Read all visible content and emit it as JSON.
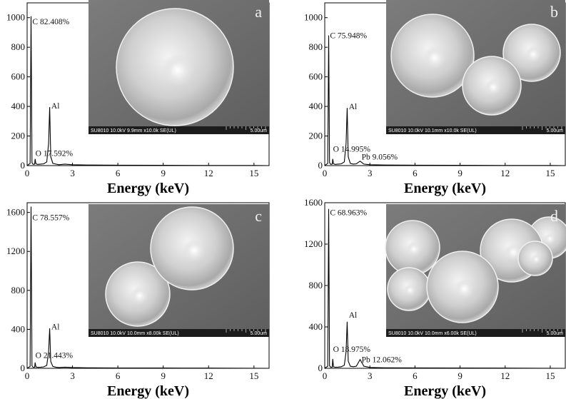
{
  "chart_data": [
    {
      "type": "line",
      "panel_label": "a",
      "xlabel": "Energy (keV)",
      "ylabel": "",
      "xlim": [
        0,
        16
      ],
      "ylim": [
        0,
        1100
      ],
      "xticks": [
        0,
        3,
        6,
        9,
        12,
        15
      ],
      "yticks": [
        0,
        200,
        400,
        600,
        800,
        1000
      ],
      "series": [
        {
          "x": [
            0,
            0.2,
            0.26,
            0.32,
            0.4,
            0.5,
            0.53,
            0.58,
            0.7,
            0.9,
            1.1,
            1.3,
            1.42,
            1.49,
            1.56,
            1.7,
            1.9,
            2.1,
            2.5,
            3,
            4,
            6,
            9,
            12,
            15,
            16
          ],
          "y": [
            0,
            15,
            1010,
            20,
            8,
            10,
            45,
            12,
            8,
            10,
            12,
            25,
            150,
            395,
            60,
            15,
            10,
            6,
            10,
            6,
            4,
            3,
            2,
            1,
            1,
            0
          ]
        }
      ],
      "peak_labels": [
        {
          "text": "C   82.408%",
          "x": 0.35,
          "y": 955
        },
        {
          "text": "Al",
          "x": 1.6,
          "y": 385
        },
        {
          "text": "O   17.592%",
          "x": 0.55,
          "y": 65
        }
      ],
      "sem_caption_left": "SU8010 10.0kV 9.9mm x10.0k SE(UL)",
      "sem_caption_right": "5.00um"
    },
    {
      "type": "line",
      "panel_label": "b",
      "xlabel": "Energy (keV)",
      "ylabel": "",
      "xlim": [
        0,
        16
      ],
      "ylim": [
        0,
        1100
      ],
      "xticks": [
        0,
        3,
        6,
        9,
        12,
        15
      ],
      "yticks": [
        0,
        200,
        400,
        600,
        800,
        1000
      ],
      "series": [
        {
          "x": [
            0,
            0.2,
            0.26,
            0.32,
            0.4,
            0.5,
            0.53,
            0.58,
            0.7,
            0.9,
            1.1,
            1.3,
            1.42,
            1.49,
            1.56,
            1.7,
            1.9,
            2.1,
            2.35,
            2.6,
            3,
            4,
            6,
            9,
            12,
            15,
            16
          ],
          "y": [
            0,
            15,
            880,
            20,
            8,
            10,
            45,
            12,
            8,
            10,
            12,
            25,
            150,
            390,
            60,
            15,
            10,
            12,
            30,
            10,
            6,
            4,
            3,
            2,
            1,
            1,
            0
          ]
        }
      ],
      "peak_labels": [
        {
          "text": "C   75.948%",
          "x": 0.35,
          "y": 860
        },
        {
          "text": "Al",
          "x": 1.6,
          "y": 380
        },
        {
          "text": "O   14.995%",
          "x": 0.55,
          "y": 95
        },
        {
          "text": "Pb   9.056%",
          "x": 2.45,
          "y": 40
        }
      ],
      "sem_caption_left": "SU8010 10.0kV 10.1mm x10.0k SE(UL)",
      "sem_caption_right": "5.00um"
    },
    {
      "type": "line",
      "panel_label": "c",
      "xlabel": "Energy (keV)",
      "ylabel": "",
      "xlim": [
        0,
        16
      ],
      "ylim": [
        0,
        1700
      ],
      "xticks": [
        0,
        3,
        6,
        9,
        12,
        15
      ],
      "yticks": [
        0,
        400,
        800,
        1200,
        1600
      ],
      "series": [
        {
          "x": [
            0,
            0.2,
            0.26,
            0.32,
            0.4,
            0.5,
            0.53,
            0.58,
            0.7,
            0.9,
            1.1,
            1.3,
            1.42,
            1.49,
            1.56,
            1.7,
            1.9,
            2.1,
            2.5,
            3,
            4,
            6,
            9,
            12,
            15,
            16
          ],
          "y": [
            0,
            20,
            1660,
            25,
            10,
            12,
            60,
            15,
            10,
            12,
            15,
            30,
            170,
            410,
            70,
            20,
            12,
            8,
            12,
            8,
            5,
            4,
            3,
            2,
            1,
            0
          ]
        }
      ],
      "peak_labels": [
        {
          "text": "C   78.557%",
          "x": 0.35,
          "y": 1520
        },
        {
          "text": "Al",
          "x": 1.6,
          "y": 400
        },
        {
          "text": "O   21.443%",
          "x": 0.55,
          "y": 105
        }
      ],
      "sem_caption_left": "SU8010 10.0kV 10.0mm x8.00k SE(UL)",
      "sem_caption_right": "5.00um"
    },
    {
      "type": "line",
      "panel_label": "d",
      "xlabel": "Energy (keV)",
      "ylabel": "",
      "xlim": [
        0,
        16
      ],
      "ylim": [
        0,
        1600
      ],
      "xticks": [
        0,
        3,
        6,
        9,
        12,
        15
      ],
      "yticks": [
        0,
        400,
        800,
        1200,
        1600
      ],
      "series": [
        {
          "x": [
            0,
            0.2,
            0.26,
            0.32,
            0.4,
            0.5,
            0.53,
            0.58,
            0.7,
            0.9,
            1.1,
            1.3,
            1.42,
            1.49,
            1.56,
            1.7,
            1.9,
            2.1,
            2.35,
            2.6,
            3,
            4,
            6,
            9,
            12,
            15,
            16
          ],
          "y": [
            0,
            20,
            1540,
            25,
            10,
            12,
            90,
            15,
            10,
            12,
            15,
            30,
            160,
            450,
            70,
            20,
            15,
            20,
            85,
            20,
            8,
            5,
            4,
            3,
            2,
            1,
            0
          ]
        }
      ],
      "peak_labels": [
        {
          "text": "C   68.963%",
          "x": 0.35,
          "y": 1480
        },
        {
          "text": "Al",
          "x": 1.6,
          "y": 490
        },
        {
          "text": "O   18.975%",
          "x": 0.55,
          "y": 160
        },
        {
          "text": "Pb   12.062%",
          "x": 2.45,
          "y": 60
        }
      ],
      "sem_caption_left": "SU8010 10.0kV 10.0mm x6.00k SE(UL)",
      "sem_caption_right": "5.00um"
    }
  ]
}
